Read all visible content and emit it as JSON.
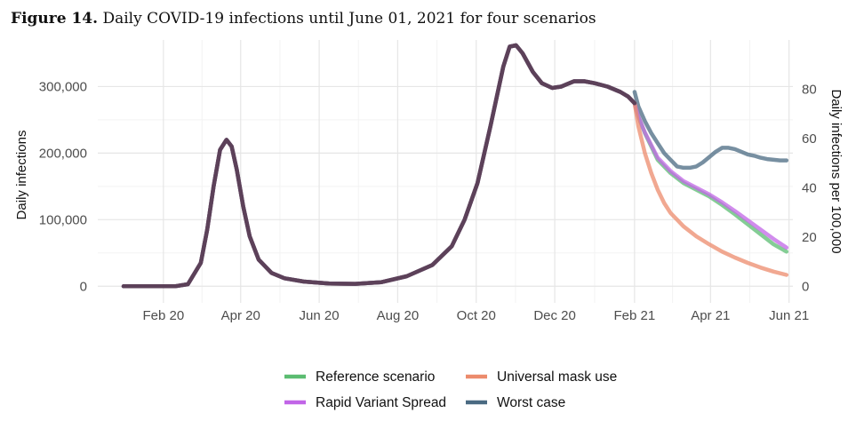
{
  "caption": {
    "label": "Figure 14.",
    "text": "Daily COVID-19 infections until June 01, 2021 for four scenarios"
  },
  "chart_data": {
    "type": "line",
    "title": "Daily COVID-19 infections until June 01, 2021 for four scenarios",
    "xlabel": "",
    "ylabel": "Daily infections",
    "ylabel_right": "Daily infections per 100,000",
    "x_unit": "days since 2020-01-01",
    "xlim": [
      -20,
      520
    ],
    "ylim": [
      -25000,
      370000
    ],
    "y_ticks": [
      0,
      100000,
      200000,
      300000
    ],
    "y_tick_labels": [
      "0",
      "100,000",
      "200,000",
      "300,000"
    ],
    "y2_ticks": [
      0,
      20,
      40,
      60,
      80
    ],
    "y2_tick_labels": [
      "0",
      "20",
      "40",
      "60",
      "80"
    ],
    "y2_per_unit": 3700,
    "x_ticks": [
      31,
      91,
      152,
      213,
      274,
      335,
      397,
      456,
      517
    ],
    "x_tick_labels": [
      "Feb 20",
      "Apr 20",
      "Jun 20",
      "Aug 20",
      "Oct 20",
      "Dec 20",
      "Feb 21",
      "Apr 21",
      "Jun 21"
    ],
    "grid": true,
    "legend_position": "bottom",
    "history": {
      "x": [
        0,
        40,
        50,
        60,
        65,
        70,
        75,
        80,
        84,
        88,
        93,
        98,
        105,
        115,
        125,
        140,
        160,
        180,
        200,
        220,
        240,
        255,
        265,
        275,
        285,
        295,
        300,
        305,
        310,
        318,
        325,
        333,
        340,
        350,
        358,
        366,
        376,
        386,
        392,
        397
      ],
      "y": [
        0,
        0,
        3000,
        35000,
        85000,
        150000,
        205000,
        220000,
        210000,
        175000,
        120000,
        75000,
        40000,
        20000,
        12000,
        7000,
        4000,
        3500,
        6000,
        15000,
        32000,
        60000,
        100000,
        155000,
        240000,
        330000,
        360000,
        362000,
        350000,
        322000,
        305000,
        298000,
        300000,
        308000,
        308000,
        305000,
        300000,
        292000,
        285000,
        275000
      ]
    },
    "series": [
      {
        "name": "Reference scenario",
        "color": "#5bbc71",
        "x": [
          397,
          400,
          405,
          410,
          415,
          425,
          435,
          445,
          455,
          465,
          475,
          485,
          495,
          505,
          515
        ],
        "y": [
          275000,
          255000,
          230000,
          210000,
          190000,
          170000,
          155000,
          145000,
          135000,
          122000,
          108000,
          93000,
          78000,
          63000,
          52000
        ]
      },
      {
        "name": "Universal mask use",
        "color": "#ec8b6c",
        "x": [
          397,
          400,
          405,
          410,
          415,
          420,
          425,
          435,
          445,
          455,
          465,
          475,
          485,
          495,
          505,
          515
        ],
        "y": [
          275000,
          240000,
          200000,
          170000,
          145000,
          125000,
          110000,
          90000,
          75000,
          63000,
          52000,
          43000,
          35000,
          28000,
          22000,
          17000
        ]
      },
      {
        "name": "Rapid Variant Spread",
        "color": "#c165e7",
        "x": [
          397,
          400,
          405,
          410,
          415,
          425,
          435,
          445,
          455,
          465,
          475,
          485,
          495,
          505,
          515
        ],
        "y": [
          275000,
          255000,
          231000,
          212000,
          193000,
          173000,
          158000,
          148000,
          138000,
          126000,
          113000,
          99000,
          85000,
          71000,
          58000
        ]
      },
      {
        "name": "Worst case",
        "color": "#4a6a82",
        "x": [
          397,
          400,
          405,
          410,
          415,
          420,
          425,
          430,
          435,
          440,
          445,
          450,
          455,
          460,
          465,
          470,
          475,
          480,
          485,
          490,
          495,
          500,
          505,
          510,
          515
        ],
        "y": [
          292000,
          270000,
          248000,
          230000,
          215000,
          200000,
          190000,
          180000,
          178000,
          178000,
          180000,
          186000,
          194000,
          202000,
          208000,
          208000,
          206000,
          202000,
          198000,
          196000,
          193000,
          191000,
          190000,
          189000,
          189000
        ]
      }
    ]
  }
}
